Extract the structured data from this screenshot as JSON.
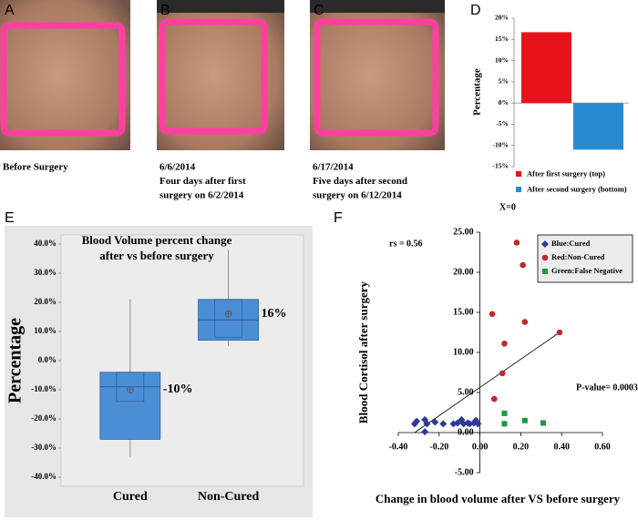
{
  "photos": [
    {
      "letter": "A",
      "caption": [
        "Before Surgery"
      ]
    },
    {
      "letter": "B",
      "caption": [
        "6/6/2014",
        "Four days after first",
        "surgery on 6/2/2014"
      ]
    },
    {
      "letter": "C",
      "caption": [
        "6/17/2014",
        "Five days after second",
        "surgery on 6/12/2014"
      ]
    }
  ],
  "chart_data": [
    {
      "type": "bar",
      "letter": "D",
      "y_label": "Percentage",
      "categories": [
        "After first surgery (top)",
        "After second surgery (bottom)"
      ],
      "values": [
        16.7,
        -11
      ],
      "colors": [
        "#e8121a",
        "#2a8ad0"
      ],
      "ylim": [
        -15,
        20
      ],
      "yticks": [
        {
          "value": 20,
          "label": "20%"
        },
        {
          "value": 15,
          "label": "15%"
        },
        {
          "value": 10,
          "label": "10%"
        },
        {
          "value": 5,
          "label": "5%"
        },
        {
          "value": 0,
          "label": "0%"
        },
        {
          "value": -5,
          "label": "-5%"
        },
        {
          "value": -10,
          "label": "-10%"
        },
        {
          "value": -15,
          "label": "-15%"
        }
      ]
    },
    {
      "type": "box",
      "letter": "E",
      "title": [
        "Blood Volume percent change",
        "after vs before surgery"
      ],
      "y_label": "Percentage",
      "categories": [
        "Cured",
        "Non-Cured"
      ],
      "boxes": [
        {
          "min": -33,
          "q1": -27,
          "median": -9,
          "q3": -4,
          "max": 21,
          "mean": -10,
          "ci_low": -14,
          "ci_high": -4
        },
        {
          "min": 5,
          "q1": 7,
          "median": 14,
          "q3": 21,
          "max": 38,
          "mean": 16,
          "ci_low": 8,
          "ci_high": 21
        }
      ],
      "mean_labels": [
        "-10%",
        "16%"
      ],
      "color": "#4a8fd6",
      "ylim": [
        -40,
        40
      ],
      "yticks": [
        {
          "value": 40,
          "label": "40.0%"
        },
        {
          "value": 30,
          "label": "30.0%"
        },
        {
          "value": 20,
          "label": "20.0%"
        },
        {
          "value": 10,
          "label": "10.0%"
        },
        {
          "value": 0,
          "label": "0.0%"
        },
        {
          "value": -10,
          "label": "-10.0%"
        },
        {
          "value": -20,
          "label": "-20.0%"
        },
        {
          "value": -30,
          "label": "-30.0%"
        },
        {
          "value": -40,
          "label": "-40.0%"
        }
      ]
    },
    {
      "type": "scatter",
      "letter": "F",
      "x_label": "Change in blood volume after VS before surgery",
      "y_label": "Blood Cortisol after surgery",
      "annotations": [
        "rs = 0.56",
        "X=0",
        "P-value= 0.0003"
      ],
      "series": [
        {
          "name": "Blue:Cured",
          "color": "#2e3a99",
          "marker": "diamond",
          "x": [
            -0.32,
            -0.31,
            -0.27,
            -0.26,
            -0.27,
            -0.22,
            -0.18,
            -0.13,
            -0.11,
            -0.09,
            -0.08,
            -0.06,
            -0.05,
            -0.03,
            -0.02,
            -0.01
          ],
          "y": [
            1.1,
            1.4,
            1.6,
            1.1,
            0.1,
            1.3,
            1.1,
            1.1,
            1.2,
            1.6,
            1.1,
            1.2,
            1.1,
            1.2,
            1.5,
            1.1
          ]
        },
        {
          "name": "Red:Non-Cured",
          "color": "#c0272d",
          "marker": "circle",
          "x": [
            0.18,
            0.21,
            0.06,
            0.22,
            0.12,
            0.39,
            0.11,
            0.07
          ],
          "y": [
            23.7,
            20.9,
            14.8,
            13.8,
            11.1,
            12.5,
            7.4,
            4.2
          ]
        },
        {
          "name": "Green:False Negative",
          "color": "#1a9a3a",
          "marker": "square",
          "x": [
            0.12,
            0.12,
            0.22,
            0.31
          ],
          "y": [
            2.4,
            1.1,
            1.5,
            1.2
          ]
        }
      ],
      "trendline": {
        "x": [
          -0.32,
          0.39
        ],
        "y": [
          0,
          12.5
        ]
      },
      "xlim": [
        -0.4,
        0.6
      ],
      "xticks": [
        {
          "value": -0.4,
          "label": "-0.40"
        },
        {
          "value": -0.2,
          "label": "-0.20"
        },
        {
          "value": 0,
          "label": "0.00"
        },
        {
          "value": 0.2,
          "label": "0.20"
        },
        {
          "value": 0.4,
          "label": "0.40"
        },
        {
          "value": 0.6,
          "label": "0.60"
        }
      ],
      "ylim": [
        -5,
        25
      ],
      "yticks": [
        {
          "value": -5,
          "label": "-5.00"
        },
        {
          "value": 0,
          "label": "0.00"
        },
        {
          "value": 5,
          "label": "5.00"
        },
        {
          "value": 10,
          "label": "10.00"
        },
        {
          "value": 15,
          "label": "15.00"
        },
        {
          "value": 20,
          "label": "20.00"
        },
        {
          "value": 25,
          "label": "25.00"
        }
      ]
    }
  ]
}
